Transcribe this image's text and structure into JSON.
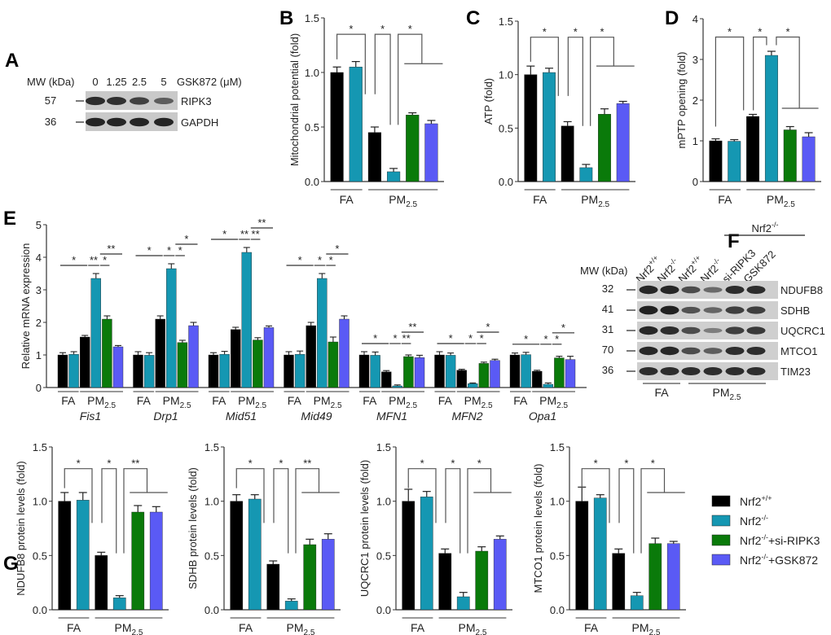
{
  "colors": {
    "Nrf2_wt": "#000000",
    "Nrf2_ko": "#1597b2",
    "Nrf2_ko_siRIPK3": "#0a7a0a",
    "Nrf2_ko_GSK872": "#5a5af5",
    "line": "#333333",
    "bracket": "#555555"
  },
  "panel_labels": [
    "A",
    "B",
    "C",
    "D",
    "E",
    "F",
    "G"
  ],
  "legend": [
    {
      "base": "Nrf2",
      "sup": "+/+",
      "suffix": "",
      "color_key": "Nrf2_wt"
    },
    {
      "base": "Nrf2",
      "sup": "-/-",
      "suffix": "",
      "color_key": "Nrf2_ko"
    },
    {
      "base": "Nrf2",
      "sup": "-/-",
      "suffix": "+si-RIPK3",
      "color_key": "Nrf2_ko_siRIPK3"
    },
    {
      "base": "Nrf2",
      "sup": "-/-",
      "suffix": "+GSK872",
      "color_key": "Nrf2_ko_GSK872"
    }
  ],
  "groups": {
    "fa": "FA",
    "pm_base": "PM",
    "pm_sub": "2.5"
  },
  "blot_A": {
    "mw_header": "MW (kDa)",
    "treatment": "GSK872 (μM)",
    "doses": [
      "0",
      "1.25",
      "2.5",
      "5"
    ],
    "rows": [
      {
        "mw": "57",
        "label": "RIPK3",
        "intensity": [
          0.85,
          0.8,
          0.65,
          0.4
        ]
      },
      {
        "mw": "36",
        "label": "GAPDH",
        "intensity": [
          0.9,
          0.9,
          0.9,
          0.9
        ]
      }
    ]
  },
  "blot_F": {
    "mw_header": "MW (kDa)",
    "top_label": {
      "base": "Nrf2",
      "sup": "-/-"
    },
    "lanes": [
      {
        "base": "Nrf2",
        "sup": "+/+"
      },
      {
        "base": "Nrf2",
        "sup": "-/-"
      },
      {
        "base": "Nrf2",
        "sup": "+/+"
      },
      {
        "base": "Nrf2",
        "sup": "-/-"
      },
      {
        "base": "si-RIPK3",
        "sup": ""
      },
      {
        "base": "GSK872",
        "sup": ""
      }
    ],
    "rows": [
      {
        "mw": "32",
        "label": "NDUFB8",
        "intensity": [
          0.9,
          0.9,
          0.6,
          0.35,
          0.85,
          0.85
        ]
      },
      {
        "mw": "41",
        "label": "SDHB",
        "intensity": [
          0.95,
          0.95,
          0.55,
          0.4,
          0.7,
          0.7
        ]
      },
      {
        "mw": "31",
        "label": "UQCRC1",
        "intensity": [
          0.9,
          0.85,
          0.6,
          0.2,
          0.7,
          0.75
        ]
      },
      {
        "mw": "70",
        "label": "MTCO1",
        "intensity": [
          0.9,
          0.9,
          0.6,
          0.45,
          0.85,
          0.85
        ]
      },
      {
        "mw": "36",
        "label": "TIM23",
        "intensity": [
          0.85,
          0.85,
          0.85,
          0.85,
          0.85,
          0.85
        ]
      }
    ],
    "groups": [
      "FA",
      "PM2.5"
    ]
  },
  "chart_data": [
    {
      "id": "B",
      "type": "bar",
      "title": "",
      "ylabel": "Mitochondrial potential (fold)",
      "ylim": [
        0,
        1.5
      ],
      "yticks": [
        "0.0",
        "0.5",
        "1.0",
        "1.5"
      ],
      "ytick_values": [
        0,
        0.5,
        1.0,
        1.5
      ],
      "categories": [
        "Nrf2+/+ FA",
        "Nrf2-/- FA",
        "Nrf2+/+ PM2.5",
        "Nrf2-/- PM2.5",
        "Nrf2-/-+si-RIPK3 PM2.5",
        "Nrf2-/-+GSK872 PM2.5"
      ],
      "values": [
        1.0,
        1.05,
        0.45,
        0.09,
        0.61,
        0.53
      ],
      "errors": [
        0.05,
        0.05,
        0.05,
        0.03,
        0.02,
        0.03
      ],
      "significance": [
        "*",
        "*",
        "*"
      ]
    },
    {
      "id": "C",
      "type": "bar",
      "title": "",
      "ylabel": "ATP (fold)",
      "ylim": [
        0,
        1.5
      ],
      "yticks": [
        "0.0",
        "0.5",
        "1.0",
        "1.5"
      ],
      "ytick_values": [
        0,
        0.5,
        1.0,
        1.5
      ],
      "categories": [
        "Nrf2+/+ FA",
        "Nrf2-/- FA",
        "Nrf2+/+ PM2.5",
        "Nrf2-/- PM2.5",
        "Nrf2-/-+si-RIPK3 PM2.5",
        "Nrf2-/-+GSK872 PM2.5"
      ],
      "values": [
        1.0,
        1.02,
        0.52,
        0.13,
        0.63,
        0.73
      ],
      "errors": [
        0.08,
        0.04,
        0.04,
        0.03,
        0.05,
        0.02
      ],
      "significance": [
        "*",
        "*",
        "*"
      ]
    },
    {
      "id": "D",
      "type": "bar",
      "title": "",
      "ylabel": "mPTP opening (fold)",
      "ylim": [
        0,
        4
      ],
      "yticks": [
        "0",
        "1",
        "2",
        "3",
        "4"
      ],
      "ytick_values": [
        0,
        1,
        2,
        3,
        4
      ],
      "categories": [
        "Nrf2+/+ FA",
        "Nrf2-/- FA",
        "Nrf2+/+ PM2.5",
        "Nrf2-/- PM2.5",
        "Nrf2-/-+si-RIPK3 PM2.5",
        "Nrf2-/-+GSK872 PM2.5"
      ],
      "values": [
        1.0,
        0.99,
        1.6,
        3.1,
        1.27,
        1.1
      ],
      "errors": [
        0.05,
        0.04,
        0.05,
        0.1,
        0.08,
        0.1
      ],
      "significance": [
        "*",
        "*",
        "*"
      ]
    },
    {
      "id": "E",
      "type": "bar",
      "title": "",
      "ylabel": "Relative mRNA expression",
      "ylim": [
        0,
        5
      ],
      "yticks": [
        "0",
        "1",
        "2",
        "3",
        "4",
        "5"
      ],
      "ytick_values": [
        0,
        1,
        2,
        3,
        4,
        5
      ],
      "genes": [
        {
          "name": "Fis1",
          "values": [
            1.0,
            1.02,
            1.55,
            3.35,
            2.1,
            1.25
          ],
          "errors": [
            0.07,
            0.08,
            0.05,
            0.15,
            0.1,
            0.04
          ],
          "sig": [
            "*",
            "**",
            "*",
            "**"
          ]
        },
        {
          "name": "Drp1",
          "values": [
            1.0,
            0.99,
            2.1,
            3.65,
            1.38,
            1.9
          ],
          "errors": [
            0.1,
            0.08,
            0.1,
            0.15,
            0.07,
            0.1
          ],
          "sig": [
            "*",
            "*",
            "*",
            "*"
          ]
        },
        {
          "name": "Mid51",
          "values": [
            1.0,
            1.02,
            1.78,
            4.15,
            1.46,
            1.84
          ],
          "errors": [
            0.07,
            0.09,
            0.07,
            0.15,
            0.07,
            0.05
          ],
          "sig": [
            "*",
            "**",
            "**",
            "**"
          ]
        },
        {
          "name": "Mid49",
          "values": [
            1.0,
            1.02,
            1.9,
            3.35,
            1.4,
            2.1
          ],
          "errors": [
            0.1,
            0.1,
            0.1,
            0.15,
            0.15,
            0.1
          ],
          "sig": [
            "*",
            "*",
            "*",
            "*"
          ]
        },
        {
          "name": "MFN1",
          "values": [
            1.0,
            0.99,
            0.48,
            0.05,
            0.95,
            0.92
          ],
          "errors": [
            0.1,
            0.1,
            0.04,
            0.03,
            0.05,
            0.07
          ],
          "sig": [
            "*",
            "*",
            "**",
            "**"
          ]
        },
        {
          "name": "MFN2",
          "values": [
            1.0,
            0.99,
            0.53,
            0.12,
            0.74,
            0.83
          ],
          "errors": [
            0.1,
            0.07,
            0.03,
            0.02,
            0.04,
            0.04
          ],
          "sig": [
            "*",
            "*",
            "*",
            "*"
          ]
        },
        {
          "name": "Opa1",
          "values": [
            1.0,
            1.01,
            0.5,
            0.1,
            0.91,
            0.86
          ],
          "errors": [
            0.06,
            0.07,
            0.03,
            0.04,
            0.05,
            0.1
          ],
          "sig": [
            "*",
            "*",
            "*",
            "*"
          ]
        }
      ]
    },
    {
      "id": "G1",
      "type": "bar",
      "title": "",
      "ylabel": "NDUFB8 protein levels (fold)",
      "ylim": [
        0,
        1.5
      ],
      "yticks": [
        "0.0",
        "0.5",
        "1.0",
        "1.5"
      ],
      "ytick_values": [
        0,
        0.5,
        1.0,
        1.5
      ],
      "values": [
        1.0,
        1.01,
        0.5,
        0.11,
        0.9,
        0.9
      ],
      "errors": [
        0.08,
        0.07,
        0.03,
        0.02,
        0.06,
        0.05
      ],
      "significance": [
        "*",
        "*",
        "**"
      ]
    },
    {
      "id": "G2",
      "type": "bar",
      "title": "",
      "ylabel": "SDHB protein levels (fold)",
      "ylim": [
        0,
        1.5
      ],
      "yticks": [
        "0.0",
        "0.5",
        "1.0",
        "1.5"
      ],
      "ytick_values": [
        0,
        0.5,
        1.0,
        1.5
      ],
      "values": [
        1.0,
        1.02,
        0.42,
        0.08,
        0.6,
        0.65
      ],
      "errors": [
        0.06,
        0.04,
        0.03,
        0.02,
        0.05,
        0.05
      ],
      "significance": [
        "*",
        "*",
        "**"
      ]
    },
    {
      "id": "G3",
      "type": "bar",
      "title": "",
      "ylabel": "UQCRC1 protein levels (fold)",
      "ylim": [
        0,
        1.5
      ],
      "yticks": [
        "0.0",
        "0.5",
        "1.0",
        "1.5"
      ],
      "ytick_values": [
        0,
        0.5,
        1.0,
        1.5
      ],
      "values": [
        1.0,
        1.04,
        0.52,
        0.12,
        0.54,
        0.65
      ],
      "errors": [
        0.11,
        0.05,
        0.04,
        0.04,
        0.04,
        0.03
      ],
      "significance": [
        "*",
        "*",
        "*"
      ]
    },
    {
      "id": "G4",
      "type": "bar",
      "title": "",
      "ylabel": "MTCO1 protein levels (fold)",
      "ylim": [
        0,
        1.5
      ],
      "yticks": [
        "0.0",
        "0.5",
        "1.0",
        "1.5"
      ],
      "ytick_values": [
        0,
        0.5,
        1.0,
        1.5
      ],
      "values": [
        1.0,
        1.03,
        0.52,
        0.13,
        0.61,
        0.61
      ],
      "errors": [
        0.13,
        0.03,
        0.04,
        0.03,
        0.05,
        0.02
      ],
      "significance": [
        "*",
        "*",
        "*"
      ]
    }
  ]
}
